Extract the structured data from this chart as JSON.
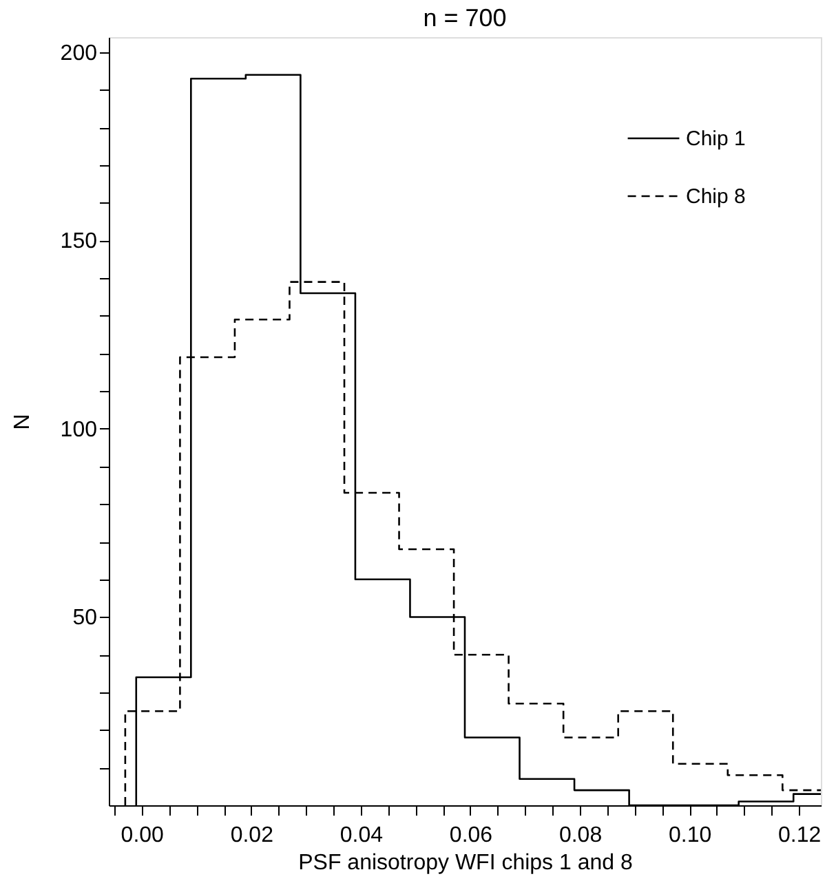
{
  "chart_data": {
    "type": "step",
    "title": "n = 700",
    "xlabel": "PSF anisotropy WFI chips 1 and 8",
    "ylabel": "N",
    "series": [
      {
        "name": "Chip 1",
        "color": "#000000",
        "line_style": "solid",
        "x": [
          -0.001,
          -0.001,
          0.009,
          0.019,
          0.029,
          0.039,
          0.049,
          0.059,
          0.069,
          0.079,
          0.089,
          0.099,
          0.109,
          0.119,
          0.124
        ],
        "values": [
          0,
          34,
          193,
          194,
          136,
          60,
          50,
          18,
          7,
          4,
          0,
          0,
          1,
          3,
          3
        ]
      },
      {
        "name": "Chip 8",
        "color": "#000000",
        "line_style": "dashed",
        "x": [
          -0.003,
          -0.003,
          0.007,
          0.017,
          0.027,
          0.037,
          0.047,
          0.057,
          0.067,
          0.077,
          0.087,
          0.097,
          0.107,
          0.117,
          0.124
        ],
        "values": [
          0,
          25,
          119,
          129,
          139,
          83,
          68,
          40,
          27,
          18,
          25,
          11,
          8,
          4,
          4
        ]
      }
    ],
    "xlim": [
      -0.006,
      0.124
    ],
    "ylim": [
      0,
      204
    ],
    "xticks": [
      {
        "value": -0.005,
        "label": null
      },
      {
        "value": 0,
        "label": "0.00"
      },
      {
        "value": 0.005,
        "label": null
      },
      {
        "value": 0.01,
        "label": null
      },
      {
        "value": 0.015,
        "label": null
      },
      {
        "value": 0.02,
        "label": "0.02"
      },
      {
        "value": 0.025,
        "label": null
      },
      {
        "value": 0.03,
        "label": null
      },
      {
        "value": 0.035,
        "label": null
      },
      {
        "value": 0.04,
        "label": "0.04"
      },
      {
        "value": 0.045,
        "label": null
      },
      {
        "value": 0.05,
        "label": null
      },
      {
        "value": 0.055,
        "label": null
      },
      {
        "value": 0.06,
        "label": "0.06"
      },
      {
        "value": 0.065,
        "label": null
      },
      {
        "value": 0.07,
        "label": null
      },
      {
        "value": 0.075,
        "label": null
      },
      {
        "value": 0.08,
        "label": "0.08"
      },
      {
        "value": 0.085,
        "label": null
      },
      {
        "value": 0.09,
        "label": null
      },
      {
        "value": 0.095,
        "label": null
      },
      {
        "value": 0.1,
        "label": "0.10"
      },
      {
        "value": 0.105,
        "label": null
      },
      {
        "value": 0.11,
        "label": null
      },
      {
        "value": 0.115,
        "label": null
      },
      {
        "value": 0.12,
        "label": "0.12"
      }
    ],
    "yticks": [
      {
        "value": 10,
        "label": null
      },
      {
        "value": 20,
        "label": null
      },
      {
        "value": 30,
        "label": null
      },
      {
        "value": 40,
        "label": null
      },
      50,
      {
        "value": 60,
        "label": null
      },
      {
        "value": 70,
        "label": null
      },
      {
        "value": 80,
        "label": null
      },
      {
        "value": 90,
        "label": null
      },
      100,
      {
        "value": 110,
        "label": null
      },
      {
        "value": 120,
        "label": null
      },
      {
        "value": 130,
        "label": null
      },
      {
        "value": 140,
        "label": null
      },
      150,
      {
        "value": 160,
        "label": null
      },
      {
        "value": 170,
        "label": null
      },
      {
        "value": 180,
        "label": null
      },
      {
        "value": 190,
        "label": null
      },
      200
    ],
    "grid": false,
    "legend": "top right"
  }
}
